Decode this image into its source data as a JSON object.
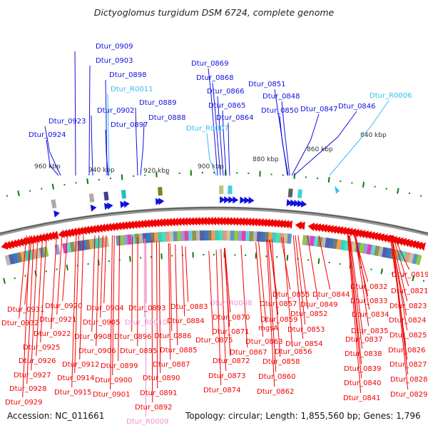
{
  "title": "Dictyoglomus turgidum DSM 6724, complete genome",
  "footer": {
    "accession": "Accession: NC_011661",
    "summary": "Topology: circular; Length: 1,855,560 bp; Genes: 1,796"
  },
  "colors": {
    "forward_gene": "#1010e0",
    "forward_rna": "#30c0f0",
    "reverse_gene": "#f00000",
    "reverse_rna": "#f090d0",
    "tick": "#108010",
    "backbone": "#888888"
  },
  "ticks": [
    {
      "label": "960 kbp"
    },
    {
      "label": "940 kbp"
    },
    {
      "label": "920 kbp"
    },
    {
      "label": "900 kbp"
    },
    {
      "label": "880 kbp"
    },
    {
      "label": "860 kbp"
    },
    {
      "label": "840 kbp"
    }
  ],
  "forward_labels": [
    {
      "name": "Dtur_0909",
      "type": "gene"
    },
    {
      "name": "Dtur_0903",
      "type": "gene"
    },
    {
      "name": "Dtur_0898",
      "type": "gene"
    },
    {
      "name": "Dtur_R0011",
      "type": "rna"
    },
    {
      "name": "Dtur_0902",
      "type": "gene"
    },
    {
      "name": "Dtur_0897",
      "type": "gene"
    },
    {
      "name": "Dtur_0889",
      "type": "gene"
    },
    {
      "name": "Dtur_0888",
      "type": "gene"
    },
    {
      "name": "Dtur_0923",
      "type": "gene"
    },
    {
      "name": "Dtur_0924",
      "type": "gene"
    },
    {
      "name": "Dtur_0869",
      "type": "gene"
    },
    {
      "name": "Dtur_0868",
      "type": "gene"
    },
    {
      "name": "Dtur_0866",
      "type": "gene"
    },
    {
      "name": "Dtur_0865",
      "type": "gene"
    },
    {
      "name": "Dtur_0864",
      "type": "gene"
    },
    {
      "name": "Dtur_R0007",
      "type": "rna"
    },
    {
      "name": "Dtur_0851",
      "type": "gene"
    },
    {
      "name": "Dtur_0848",
      "type": "gene"
    },
    {
      "name": "Dtur_0850",
      "type": "gene"
    },
    {
      "name": "Dtur_0847",
      "type": "gene"
    },
    {
      "name": "Dtur_0846",
      "type": "gene"
    },
    {
      "name": "Dtur_R0006",
      "type": "rna"
    }
  ],
  "reverse_labels": [
    {
      "name": "Dtur_0931",
      "type": "gene"
    },
    {
      "name": "Dtur_0932",
      "type": "gene"
    },
    {
      "name": "Dtur_0920",
      "type": "gene"
    },
    {
      "name": "Dtur_0921",
      "type": "gene"
    },
    {
      "name": "Dtur_0922",
      "type": "gene"
    },
    {
      "name": "Dtur_0925",
      "type": "gene"
    },
    {
      "name": "Dtur_0926",
      "type": "gene"
    },
    {
      "name": "Dtur_0927",
      "type": "gene"
    },
    {
      "name": "Dtur_0928",
      "type": "gene"
    },
    {
      "name": "Dtur_0929",
      "type": "gene"
    },
    {
      "name": "Dtur_0904",
      "type": "gene"
    },
    {
      "name": "Dtur_0905",
      "type": "gene"
    },
    {
      "name": "Dtur_0908",
      "type": "gene"
    },
    {
      "name": "Dtur_0906",
      "type": "gene"
    },
    {
      "name": "Dtur_0912",
      "type": "gene"
    },
    {
      "name": "Dtur_0914",
      "type": "gene"
    },
    {
      "name": "Dtur_0915",
      "type": "gene"
    },
    {
      "name": "Dtur_0899",
      "type": "gene"
    },
    {
      "name": "Dtur_0900",
      "type": "gene"
    },
    {
      "name": "Dtur_0901",
      "type": "gene"
    },
    {
      "name": "Dtur_0893",
      "type": "gene"
    },
    {
      "name": "Dtur_R0010",
      "type": "rna"
    },
    {
      "name": "Dtur_0896",
      "type": "gene"
    },
    {
      "name": "Dtur_0895",
      "type": "gene"
    },
    {
      "name": "Dtur_0883",
      "type": "gene"
    },
    {
      "name": "Dtur_0884",
      "type": "gene"
    },
    {
      "name": "Dtur_0886",
      "type": "gene"
    },
    {
      "name": "Dtur_0885",
      "type": "gene"
    },
    {
      "name": "Dtur_0887",
      "type": "gene"
    },
    {
      "name": "Dtur_0890",
      "type": "gene"
    },
    {
      "name": "Dtur_0891",
      "type": "gene"
    },
    {
      "name": "Dtur_0892",
      "type": "gene"
    },
    {
      "name": "Dtur_R0009",
      "type": "rna"
    },
    {
      "name": "Dtur_R0008",
      "type": "rna"
    },
    {
      "name": "Dtur_0870",
      "type": "gene"
    },
    {
      "name": "Dtur_0871",
      "type": "gene"
    },
    {
      "name": "Dtur_0875",
      "type": "gene"
    },
    {
      "name": "Dtur_0867",
      "type": "gene"
    },
    {
      "name": "Dtur_0872",
      "type": "gene"
    },
    {
      "name": "Dtur_0873",
      "type": "gene"
    },
    {
      "name": "Dtur_0874",
      "type": "gene"
    },
    {
      "name": "Dtur_0855",
      "type": "gene"
    },
    {
      "name": "Dtur_0857",
      "type": "gene"
    },
    {
      "name": "Dtur_0859",
      "type": "gene"
    },
    {
      "name": "mgsA",
      "type": "gene"
    },
    {
      "name": "Dtur_0863",
      "type": "gene"
    },
    {
      "name": "Dtur_0856",
      "type": "gene"
    },
    {
      "name": "Dtur_0858",
      "type": "gene"
    },
    {
      "name": "Dtur_0860",
      "type": "gene"
    },
    {
      "name": "Dtur_0862",
      "type": "gene"
    },
    {
      "name": "Dtur_0849",
      "type": "gene"
    },
    {
      "name": "Dtur_0852",
      "type": "gene"
    },
    {
      "name": "Dtur_0853",
      "type": "gene"
    },
    {
      "name": "Dtur_0854",
      "type": "gene"
    },
    {
      "name": "Dtur_0844",
      "type": "gene"
    },
    {
      "name": "Dtur_0832",
      "type": "gene"
    },
    {
      "name": "Dtur_0833",
      "type": "gene"
    },
    {
      "name": "Dtur_0834",
      "type": "gene"
    },
    {
      "name": "Dtur_0835",
      "type": "gene"
    },
    {
      "name": "Dtur_0837",
      "type": "gene"
    },
    {
      "name": "Dtur_0838",
      "type": "gene"
    },
    {
      "name": "Dtur_0839",
      "type": "gene"
    },
    {
      "name": "Dtur_0840",
      "type": "gene"
    },
    {
      "name": "Dtur_0841",
      "type": "gene"
    },
    {
      "name": "Dtur_0819",
      "type": "gene"
    },
    {
      "name": "Dtur_0821",
      "type": "gene"
    },
    {
      "name": "Dtur_0823",
      "type": "gene"
    },
    {
      "name": "Dtur_0824",
      "type": "gene"
    },
    {
      "name": "Dtur_0825",
      "type": "gene"
    },
    {
      "name": "Dtur_0826",
      "type": "gene"
    },
    {
      "name": "Dtur_0827",
      "type": "gene"
    },
    {
      "name": "Dtur_0828",
      "type": "gene"
    },
    {
      "name": "Dtur_0829",
      "type": "gene"
    }
  ]
}
